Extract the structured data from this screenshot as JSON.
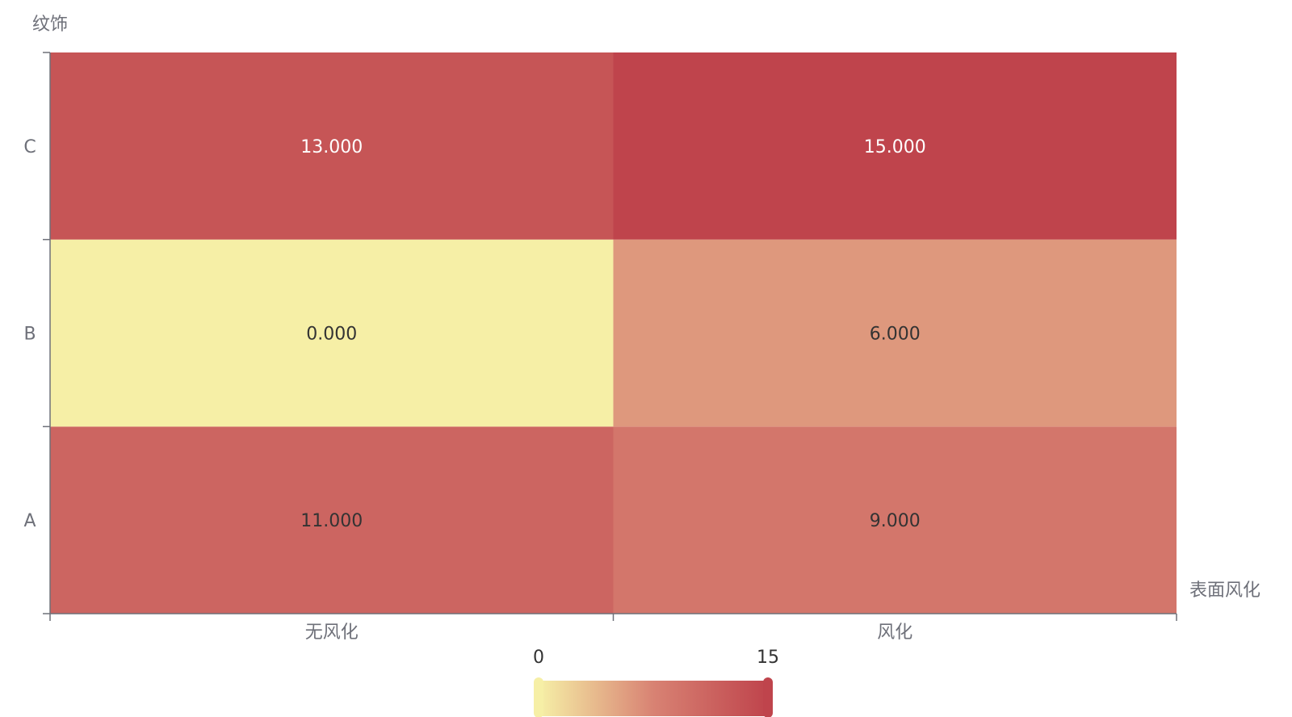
{
  "chart_data": {
    "type": "heatmap",
    "xlabel": "表面风化",
    "ylabel": "纹饰",
    "x_categories": [
      "无风化",
      "风化"
    ],
    "y_categories": [
      "A",
      "B",
      "C"
    ],
    "values": [
      {
        "x": "无风化",
        "y": "A",
        "value": 11,
        "label": "11.000"
      },
      {
        "x": "风化",
        "y": "A",
        "value": 9,
        "label": "9.000"
      },
      {
        "x": "无风化",
        "y": "B",
        "value": 0,
        "label": "0.000"
      },
      {
        "x": "风化",
        "y": "B",
        "value": 6,
        "label": "6.000"
      },
      {
        "x": "无风化",
        "y": "C",
        "value": 13,
        "label": "13.000"
      },
      {
        "x": "风化",
        "y": "C",
        "value": 15,
        "label": "15.000"
      }
    ],
    "visual_map": {
      "min": 0,
      "max": 15,
      "min_label": "0",
      "max_label": "15",
      "colors": [
        "#f6efa6",
        "#d88273",
        "#bf444c"
      ]
    }
  }
}
